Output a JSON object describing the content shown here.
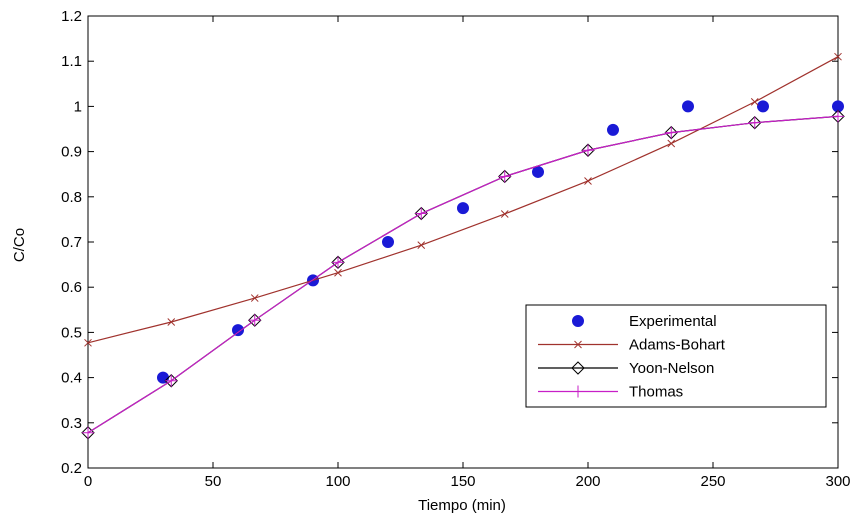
{
  "chart_data": {
    "type": "line",
    "xlabel": "Tiempo (min)",
    "ylabel": "C/Co",
    "xlim": [
      0,
      300
    ],
    "ylim": [
      0.2,
      1.2
    ],
    "x_ticks": [
      0,
      50,
      100,
      150,
      200,
      250,
      300
    ],
    "y_ticks": [
      0.2,
      0.3,
      0.4,
      0.5,
      0.6,
      0.7,
      0.8,
      0.9,
      1.0,
      1.1,
      1.2
    ],
    "x_tick_labels": [
      "0",
      "50",
      "100",
      "150",
      "200",
      "250",
      "300"
    ],
    "y_tick_labels": [
      "0.2",
      "0.3",
      "0.4",
      "0.5",
      "0.6",
      "0.7",
      "0.8",
      "0.9",
      "1",
      "1.1",
      "1.2"
    ],
    "grid": false,
    "legend_position": "lower-right",
    "series": [
      {
        "name": "Experimental",
        "style": "markers",
        "marker": "filled-circle",
        "color": "#1a1ad6",
        "x": [
          30,
          60,
          90,
          120,
          150,
          180,
          210,
          240,
          270,
          300
        ],
        "y": [
          0.4,
          0.505,
          0.615,
          0.7,
          0.775,
          0.855,
          0.948,
          1.0,
          1.0,
          1.0
        ]
      },
      {
        "name": "Adams-Bohart",
        "style": "line",
        "marker": "x",
        "color": "#a0322d",
        "x": [
          0,
          33.3,
          66.7,
          100,
          133.3,
          166.7,
          200,
          233.3,
          266.7,
          300
        ],
        "y": [
          0.477,
          0.523,
          0.576,
          0.632,
          0.693,
          0.762,
          0.835,
          0.918,
          1.01,
          1.11
        ]
      },
      {
        "name": "Yoon-Nelson",
        "style": "line",
        "marker": "diamond",
        "color": "#000000",
        "x": [
          0,
          33.3,
          66.7,
          100,
          133.3,
          166.7,
          200,
          233.3,
          266.7,
          300
        ],
        "y": [
          0.278,
          0.393,
          0.527,
          0.655,
          0.763,
          0.845,
          0.903,
          0.942,
          0.964,
          0.978
        ]
      },
      {
        "name": "Thomas",
        "style": "line",
        "marker": "plus",
        "color": "#c71fc7",
        "x": [
          0,
          33.3,
          66.7,
          100,
          133.3,
          166.7,
          200,
          233.3,
          266.7,
          300
        ],
        "y": [
          0.278,
          0.393,
          0.527,
          0.655,
          0.763,
          0.845,
          0.903,
          0.942,
          0.964,
          0.978
        ]
      }
    ]
  }
}
